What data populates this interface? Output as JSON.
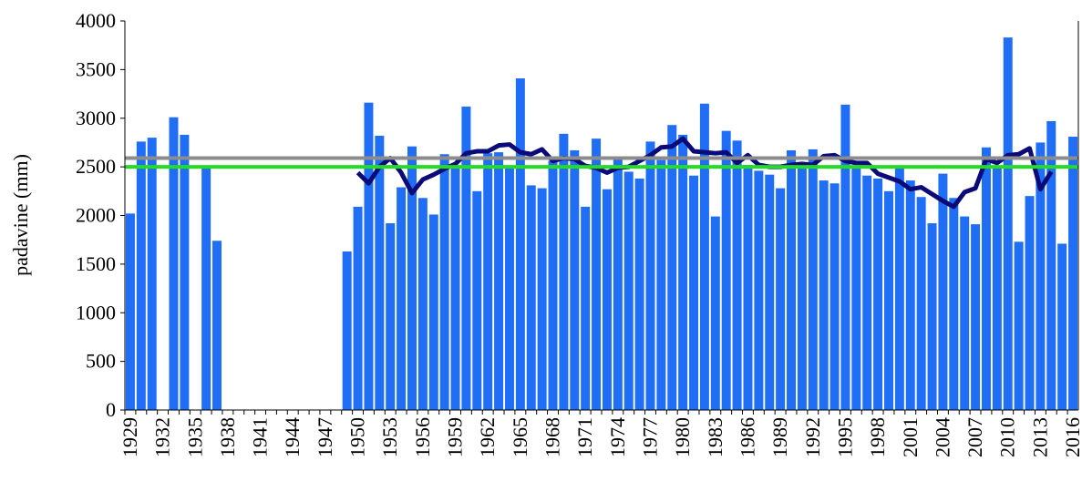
{
  "chart_data": {
    "type": "bar",
    "y_label": "padavine (mm)",
    "categories": [
      "1929",
      null,
      null,
      "1932",
      null,
      null,
      "1935",
      null,
      null,
      "1938",
      null,
      null,
      "1941",
      null,
      null,
      "1944",
      null,
      null,
      "1947",
      null,
      null,
      "1950",
      null,
      null,
      "1953",
      null,
      null,
      "1956",
      null,
      null,
      "1959",
      null,
      null,
      "1962",
      null,
      null,
      "1965",
      null,
      null,
      "1968",
      null,
      null,
      "1971",
      null,
      null,
      "1974",
      null,
      null,
      "1977",
      null,
      null,
      "1980",
      null,
      null,
      "1983",
      null,
      null,
      "1986",
      null,
      null,
      "1989",
      null,
      null,
      "1992",
      null,
      null,
      "1995",
      null,
      null,
      "1998",
      null,
      null,
      "2001",
      null,
      null,
      "2004",
      null,
      null,
      "2007",
      null,
      null,
      "2010",
      null,
      null,
      "2013",
      null,
      null,
      "2016"
    ],
    "series": [
      {
        "type": "bar",
        "color": "#1f6ef5",
        "values": [
          2020,
          2760,
          2800,
          null,
          3010,
          2830,
          null,
          2490,
          1740,
          null,
          null,
          null,
          null,
          null,
          null,
          null,
          null,
          null,
          null,
          null,
          1630,
          2090,
          3160,
          2820,
          1920,
          2290,
          2710,
          2180,
          2010,
          2630,
          2500,
          3120,
          2250,
          2640,
          2650,
          2500,
          3410,
          2310,
          2280,
          2560,
          2840,
          2670,
          2090,
          2790,
          2270,
          2580,
          2450,
          2380,
          2760,
          2570,
          2930,
          2830,
          2410,
          3150,
          1990,
          2870,
          2770,
          2520,
          2460,
          2420,
          2280,
          2670,
          2500,
          2680,
          2360,
          2330,
          3140,
          2500,
          2410,
          2380,
          2250,
          2490,
          2360,
          2190,
          1920,
          2430,
          2180,
          1990,
          1910,
          2700,
          2500,
          3830,
          1730,
          2200,
          2750,
          2970,
          1710,
          2810
        ]
      },
      {
        "type": "line",
        "color": "#0a0a78",
        "values": [
          null,
          null,
          null,
          null,
          null,
          null,
          null,
          null,
          null,
          null,
          null,
          null,
          null,
          null,
          null,
          null,
          null,
          null,
          null,
          null,
          null,
          2440,
          2330,
          2500,
          2590,
          2440,
          2230,
          2370,
          2420,
          2480,
          2530,
          2640,
          2660,
          2660,
          2720,
          2730,
          2650,
          2630,
          2680,
          2560,
          2590,
          2580,
          2510,
          2490,
          2440,
          2490,
          2500,
          2560,
          2620,
          2700,
          2710,
          2790,
          2660,
          2650,
          2640,
          2650,
          2540,
          2620,
          2520,
          2500,
          2500,
          2520,
          2530,
          2520,
          2610,
          2620,
          2560,
          2540,
          2540,
          2430,
          2390,
          2350,
          2270,
          2290,
          2220,
          2150,
          2090,
          2240,
          2280,
          2580,
          2540,
          2620,
          2630,
          2690,
          2270,
          2450,
          null,
          null
        ]
      }
    ],
    "reference_lines": [
      {
        "value": 2590,
        "color": "#8c8c8c"
      },
      {
        "value": 2500,
        "color": "#22dd22"
      }
    ],
    "ylim": [
      0,
      4000
    ],
    "yticks": [
      0,
      500,
      1000,
      1500,
      2000,
      2500,
      3000,
      3500,
      4000
    ]
  }
}
